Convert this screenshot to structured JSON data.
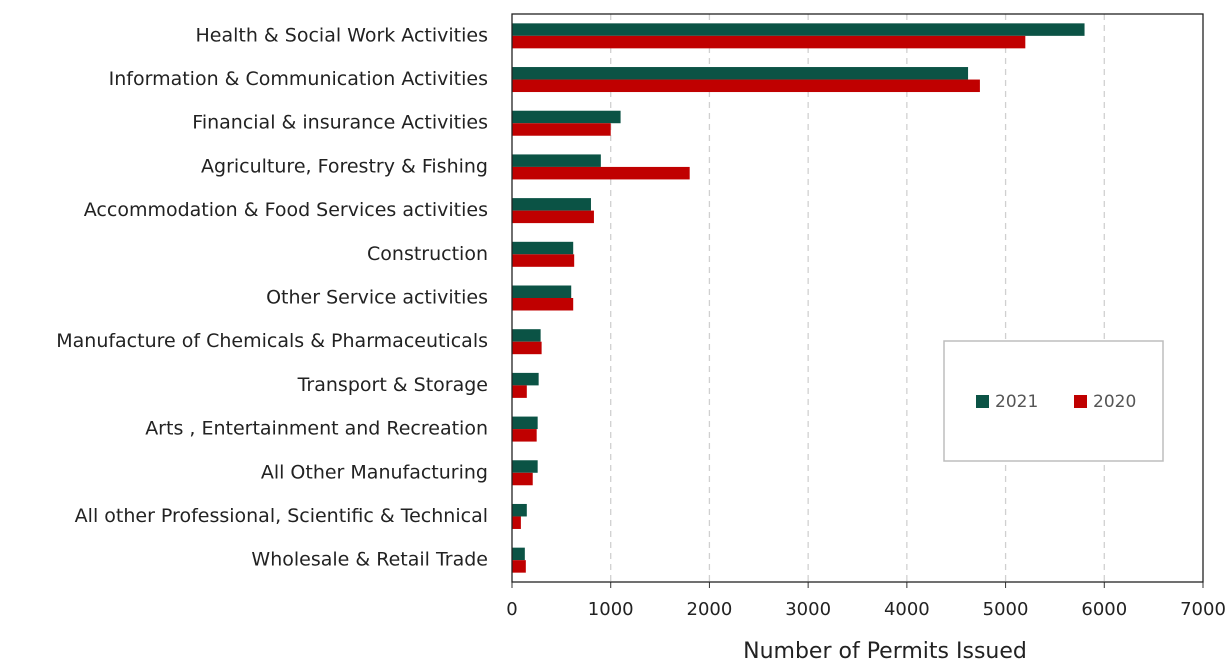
{
  "chart_data": {
    "type": "hbar",
    "xlabel": "Number of Permits Issued",
    "categories": [
      "Health & Social Work Activities",
      "Information & Communication Activities",
      "Financial & insurance Activities",
      "Agriculture, Forestry & Fishing",
      "Accommodation & Food Services activities",
      "Construction",
      "Other Service activities",
      "Manufacture of Chemicals & Pharmaceuticals",
      "Transport & Storage",
      "Arts , Entertainment and Recreation",
      "All Other Manufacturing",
      "All other Professional, Scientific & Technical",
      "Wholesale & Retail Trade"
    ],
    "series": [
      {
        "name": "2021",
        "color": "#0b5345",
        "values": [
          5800,
          4620,
          1100,
          900,
          800,
          620,
          600,
          290,
          270,
          260,
          260,
          150,
          130
        ]
      },
      {
        "name": "2020",
        "color": "#c00000",
        "values": [
          5200,
          4740,
          1000,
          1800,
          830,
          630,
          620,
          300,
          150,
          250,
          210,
          90,
          140
        ]
      }
    ],
    "xlim": [
      0,
      7000
    ],
    "xticks": [
      0,
      1000,
      2000,
      3000,
      4000,
      5000,
      6000,
      7000
    ],
    "grid": true,
    "legend": "right"
  }
}
